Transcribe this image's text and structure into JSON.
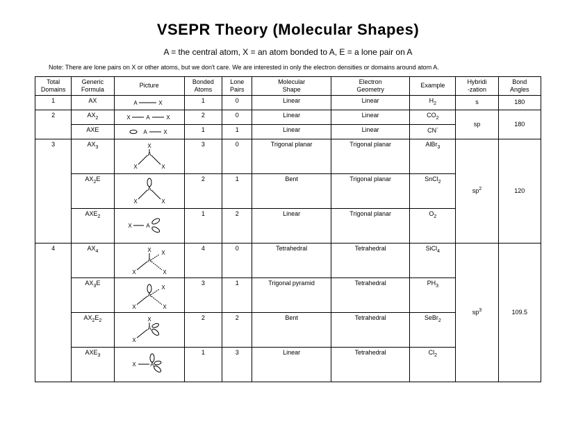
{
  "title": "VSEPR Theory (Molecular Shapes)",
  "subtitle": "A = the central atom, X = an atom bonded to A, E = a lone pair on A",
  "note": "Note:  There are lone pairs on X or other atoms, but we don't care.  We are interested in only the electron densities or domains around atom A.",
  "columns": [
    {
      "l1": "Total",
      "l2": "Domains"
    },
    {
      "l1": "Generic",
      "l2": "Formula"
    },
    {
      "l1": "Picture",
      "l2": ""
    },
    {
      "l1": "Bonded",
      "l2": "Atoms"
    },
    {
      "l1": "Lone",
      "l2": "Pairs"
    },
    {
      "l1": "Molecular",
      "l2": "Shape"
    },
    {
      "l1": "Electron",
      "l2": "Geometry"
    },
    {
      "l1": "Example",
      "l2": ""
    },
    {
      "l1": "Hybridi",
      "l2": "-zation"
    },
    {
      "l1": "Bond",
      "l2": "Angles"
    }
  ],
  "groups": [
    {
      "domains": "1",
      "hybrid": "s",
      "hybrid_sup": "",
      "angle": "180",
      "rows": [
        {
          "formula": "AX",
          "formula_sub": "",
          "pic": "ax",
          "bonded": "1",
          "lone": "0",
          "shape": "Linear",
          "geom": "Linear",
          "ex": "H",
          "ex_sub": "2",
          "short": true
        }
      ]
    },
    {
      "domains": "2",
      "hybrid": "sp",
      "hybrid_sup": "",
      "angle": "180",
      "rows": [
        {
          "formula": "AX",
          "formula_sub": "2",
          "pic": "ax2",
          "bonded": "2",
          "lone": "0",
          "shape": "Linear",
          "geom": "Linear",
          "ex": "CO",
          "ex_sub": "2",
          "short": true
        },
        {
          "formula": "AXE",
          "formula_sub": "",
          "pic": "axe",
          "bonded": "1",
          "lone": "1",
          "shape": "Linear",
          "geom": "Linear",
          "ex": "CN",
          "ex_sub": "",
          "ex_sup": "-",
          "short": true
        }
      ]
    },
    {
      "domains": "3",
      "hybrid": "sp",
      "hybrid_sup": "2",
      "angle": "120",
      "rows": [
        {
          "formula": "AX",
          "formula_sub": "3",
          "pic": "ax3",
          "bonded": "3",
          "lone": "0",
          "shape": "Trigonal planar",
          "geom": "Trigonal planar",
          "ex": "AlBr",
          "ex_sub": "3"
        },
        {
          "formula": "AX",
          "formula_sub": "2",
          "formula_tail": "E",
          "pic": "ax2e",
          "bonded": "2",
          "lone": "1",
          "shape": "Bent",
          "geom": "Trigonal planar",
          "ex": "SnCl",
          "ex_sub": "2"
        },
        {
          "formula": "AXE",
          "formula_sub": "2",
          "pic": "axe2",
          "bonded": "1",
          "lone": "2",
          "shape": "Linear",
          "geom": "Trigonal planar",
          "ex": "O",
          "ex_sub": "2"
        }
      ]
    },
    {
      "domains": "4",
      "hybrid": "sp",
      "hybrid_sup": "3",
      "angle": "109.5",
      "rows": [
        {
          "formula": "AX",
          "formula_sub": "4",
          "pic": "ax4",
          "bonded": "4",
          "lone": "0",
          "shape": "Tetrahedral",
          "geom": "Tetrahedral",
          "ex": "SiCl",
          "ex_sub": "4"
        },
        {
          "formula": "AX",
          "formula_sub": "3",
          "formula_tail": "E",
          "pic": "ax3e",
          "bonded": "3",
          "lone": "1",
          "shape": "Trigonal pyramid",
          "geom": "Tetrahedral",
          "ex": "PH",
          "ex_sub": "3"
        },
        {
          "formula": "AX",
          "formula_sub": "2",
          "formula_tail": "E",
          "formula_tail_sub": "2",
          "pic": "ax2e2",
          "bonded": "2",
          "lone": "2",
          "shape": "Bent",
          "geom": "Tetrahedral",
          "ex": "SeBr",
          "ex_sub": "2"
        },
        {
          "formula": "AXE",
          "formula_sub": "3",
          "pic": "axe3",
          "bonded": "1",
          "lone": "3",
          "shape": "Linear",
          "geom": "Tetrahedral",
          "ex": "Cl",
          "ex_sub": "2"
        }
      ]
    }
  ],
  "svg_style": {
    "stroke": "#000000",
    "stroke_width": 1,
    "font_size": 8,
    "font_family": "Arial"
  }
}
